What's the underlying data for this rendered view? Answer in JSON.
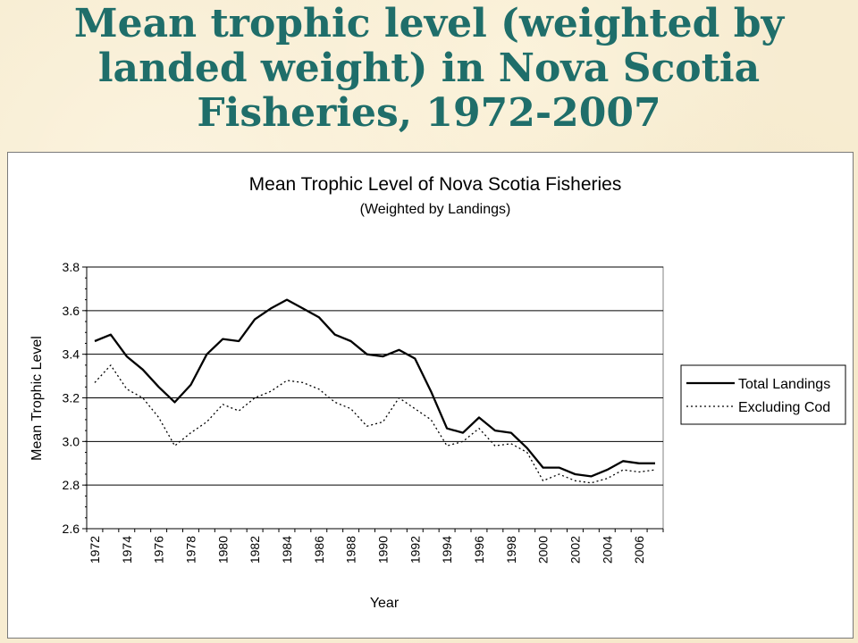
{
  "slide": {
    "title_lines": [
      "Mean trophic level (weighted by",
      "landed weight) in Nova Scotia",
      "Fisheries, 1972-2007"
    ]
  },
  "chart_data": {
    "type": "line",
    "title": "Mean Trophic Level of Nova Scotia Fisheries",
    "subtitle": "(Weighted by Landings)",
    "xlabel": "Year",
    "ylabel": "Mean Trophic Level",
    "ylim": [
      2.6,
      3.8
    ],
    "yticks": [
      "2.6",
      "2.8",
      "3.0",
      "3.2",
      "3.4",
      "3.6",
      "3.8"
    ],
    "grid": true,
    "legend_position": "right",
    "x": [
      1972,
      1973,
      1974,
      1975,
      1976,
      1977,
      1978,
      1979,
      1980,
      1981,
      1982,
      1983,
      1984,
      1985,
      1986,
      1987,
      1988,
      1989,
      1990,
      1991,
      1992,
      1993,
      1994,
      1995,
      1996,
      1997,
      1998,
      1999,
      2000,
      2001,
      2002,
      2003,
      2004,
      2005,
      2006,
      2007
    ],
    "xtick_labels": [
      "1972",
      "1974",
      "1976",
      "1978",
      "1980",
      "1982",
      "1984",
      "1986",
      "1988",
      "1990",
      "1992",
      "1994",
      "1996",
      "1998",
      "2000",
      "2002",
      "2004",
      "2006"
    ],
    "series": [
      {
        "name": "Total Landings",
        "style": "solid",
        "color": "#000000",
        "values": [
          3.46,
          3.49,
          3.39,
          3.33,
          3.25,
          3.18,
          3.26,
          3.4,
          3.47,
          3.46,
          3.56,
          3.61,
          3.65,
          3.61,
          3.57,
          3.49,
          3.46,
          3.4,
          3.39,
          3.42,
          3.38,
          3.23,
          3.06,
          3.04,
          3.11,
          3.05,
          3.04,
          2.97,
          2.88,
          2.88,
          2.85,
          2.84,
          2.87,
          2.91,
          2.9,
          2.9
        ]
      },
      {
        "name": "Excluding Cod",
        "style": "dotted",
        "color": "#000000",
        "values": [
          3.27,
          3.35,
          3.24,
          3.2,
          3.11,
          2.98,
          3.04,
          3.09,
          3.17,
          3.14,
          3.2,
          3.23,
          3.28,
          3.27,
          3.24,
          3.18,
          3.15,
          3.07,
          3.09,
          3.2,
          3.15,
          3.1,
          2.98,
          3.0,
          3.06,
          2.98,
          2.99,
          2.95,
          2.82,
          2.85,
          2.82,
          2.81,
          2.83,
          2.87,
          2.86,
          2.87
        ]
      }
    ]
  }
}
